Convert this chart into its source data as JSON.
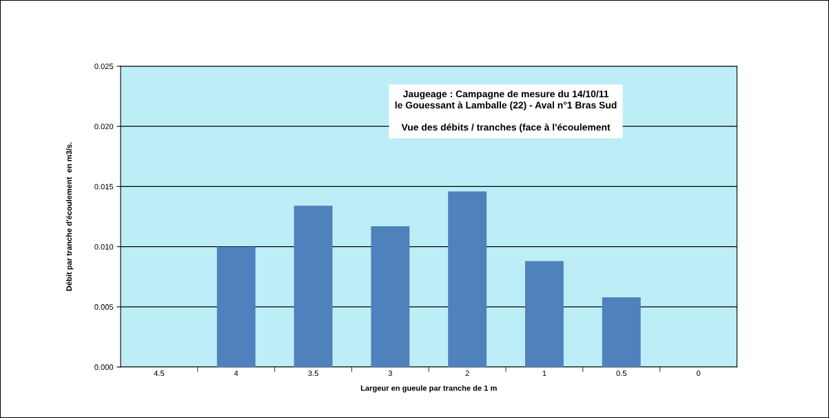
{
  "chart_data": {
    "type": "bar",
    "title": "Jaugeage : Campagne de mesure du 14/10/11\nle Gouessant à Lamballe (22) - Aval n°1 Bras Sud",
    "subtitle": "Vue des débits / tranches (face à l'écoulement",
    "xlabel": "Largeur en gueule par tranche de 1 m",
    "ylabel": "Débit par tranche d'écoulement  en m3/s.",
    "categories": [
      "4.5",
      "4",
      "3.5",
      "3",
      "2",
      "1",
      "0.5",
      "0"
    ],
    "values": [
      null,
      0.01,
      0.0134,
      0.0117,
      0.0146,
      0.0088,
      0.0058,
      null
    ],
    "color": "#4f81bd",
    "ylim": [
      0,
      0.025
    ],
    "yticks": [
      {
        "value": 0,
        "label": "0.000"
      },
      {
        "value": 0.005,
        "label": "0.005"
      },
      {
        "value": 0.01,
        "label": "0.010"
      },
      {
        "value": 0.015,
        "label": "0.015"
      },
      {
        "value": 0.02,
        "label": "0.020"
      },
      {
        "value": 0.025,
        "label": "0.025"
      }
    ],
    "grid": "y"
  }
}
